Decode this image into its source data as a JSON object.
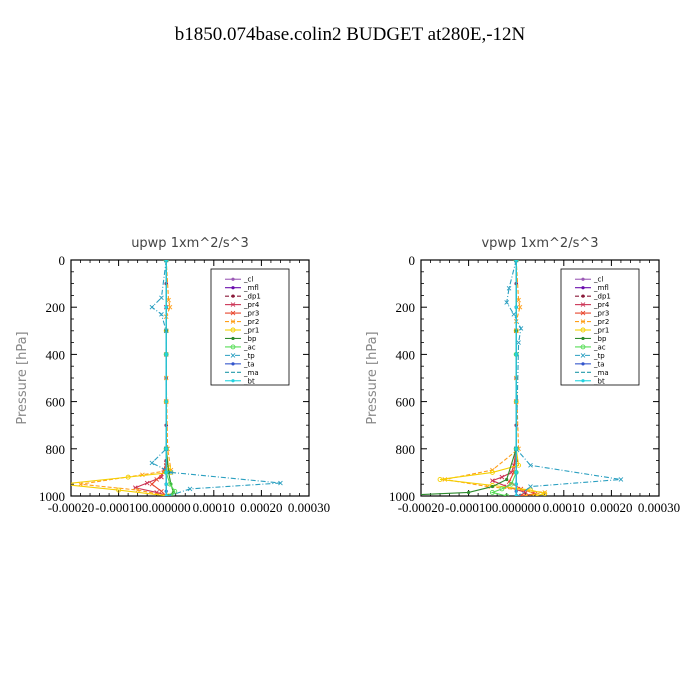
{
  "figure": {
    "title": "b1850.074base.colin2  BUDGET at280E,-12N"
  },
  "chart_data": [
    {
      "type": "line",
      "title": "upwp   1xm^2/s^3",
      "ylabel": "Pressure  [hPa]",
      "xlabel": "",
      "xlim": [
        -0.0002,
        0.0003
      ],
      "ylim": [
        0,
        1000
      ],
      "y_inverted": true,
      "xticks": [
        "-0.00020",
        "-0.00010",
        "0.000000",
        "0.00010",
        "0.00020",
        "0.00030"
      ],
      "yticks": [
        "0",
        "200",
        "400",
        "600",
        "800",
        "1000"
      ],
      "legend_position": "top-right",
      "series": [
        {
          "name": "_cl",
          "color": "#9b59b6",
          "style": "solid",
          "marker": "dot",
          "x": [
            0,
            0,
            0,
            0,
            0,
            0,
            0,
            0,
            0,
            0,
            0,
            0,
            0
          ],
          "y": [
            0,
            100,
            200,
            300,
            400,
            500,
            600,
            700,
            800,
            850,
            900,
            950,
            1000
          ]
        },
        {
          "name": "_mfl",
          "color": "#6a0dad",
          "style": "solid",
          "marker": "dot",
          "x": [
            0,
            0,
            0,
            0,
            0,
            0,
            0,
            0,
            0,
            0,
            0,
            0,
            0
          ],
          "y": [
            0,
            100,
            200,
            300,
            400,
            500,
            600,
            700,
            800,
            850,
            900,
            950,
            1000
          ]
        },
        {
          "name": "_dp1",
          "color": "#8b1a3a",
          "style": "dash",
          "marker": "dot",
          "x": [
            0,
            0,
            0,
            0,
            0,
            0,
            0,
            0,
            0,
            0,
            0,
            0,
            0
          ],
          "y": [
            0,
            100,
            200,
            300,
            400,
            500,
            600,
            700,
            800,
            850,
            900,
            950,
            1000
          ]
        },
        {
          "name": "_pr4",
          "color": "#cc3355",
          "style": "solid",
          "marker": "x",
          "x": [
            0,
            0,
            0,
            0,
            0,
            0,
            -5e-06,
            -1e-05,
            -4e-05,
            -6.5e-05,
            -2e-05,
            5e-06
          ],
          "y": [
            0,
            200,
            400,
            600,
            800,
            860,
            890,
            920,
            945,
            965,
            985,
            1000
          ]
        },
        {
          "name": "_pr3",
          "color": "#e8452c",
          "style": "solid",
          "marker": "x",
          "x": [
            0,
            0,
            0,
            0,
            0,
            -5e-06,
            -2e-05,
            -3e-05,
            -1e-05,
            0
          ],
          "y": [
            0,
            300,
            600,
            800,
            870,
            900,
            930,
            950,
            980,
            1000
          ]
        },
        {
          "name": "_pr2",
          "color": "#ff9f1a",
          "style": "dash",
          "marker": "x",
          "x": [
            0,
            5e-06,
            8e-06,
            0,
            0,
            3e-06,
            1e-05,
            -5e-05,
            -0.00018,
            -6e-05,
            5e-06
          ],
          "y": [
            0,
            170,
            200,
            240,
            500,
            800,
            890,
            910,
            950,
            975,
            1000
          ]
        },
        {
          "name": "_pr1",
          "color": "#f5d000",
          "style": "solid",
          "marker": "o",
          "x": [
            0,
            0,
            0,
            0,
            5e-06,
            1e-05,
            -8e-05,
            -0.00022,
            -0.0001,
            5e-06
          ],
          "y": [
            0,
            300,
            600,
            800,
            880,
            900,
            920,
            950,
            975,
            1000
          ]
        },
        {
          "name": "_bp",
          "color": "#2e8b2e",
          "style": "solid",
          "marker": "dot",
          "x": [
            0,
            0,
            0,
            0,
            5e-06,
            1e-05,
            1.5e-05,
            5e-06
          ],
          "y": [
            0,
            300,
            600,
            800,
            900,
            950,
            985,
            1000
          ]
        },
        {
          "name": "_ac",
          "color": "#55dd55",
          "style": "solid",
          "marker": "o",
          "x": [
            0,
            0,
            0,
            0,
            8e-06,
            1.8e-05,
            1e-05
          ],
          "y": [
            0,
            400,
            800,
            900,
            950,
            980,
            1000
          ]
        },
        {
          "name": "_tp",
          "color": "#2a9fc0",
          "style": "dashdot",
          "marker": "x",
          "x": [
            0,
            -1e-05,
            -3e-05,
            -1e-05,
            0,
            0,
            -3e-05,
            1e-05,
            0.00024,
            5e-05,
            5e-06
          ],
          "y": [
            0,
            160,
            200,
            230,
            300,
            800,
            860,
            900,
            945,
            970,
            1000
          ]
        },
        {
          "name": "_ta",
          "color": "#3355cc",
          "style": "solid",
          "marker": "dot",
          "x": [
            0,
            0,
            0,
            0,
            0,
            0,
            0,
            0,
            0
          ],
          "y": [
            0,
            200,
            400,
            600,
            800,
            900,
            950,
            980,
            1000
          ]
        },
        {
          "name": "_ma",
          "color": "#2299aa",
          "style": "dash",
          "marker": "none",
          "x": [
            0,
            0,
            0,
            0,
            0,
            0,
            0,
            0
          ],
          "y": [
            0,
            200,
            400,
            600,
            800,
            900,
            950,
            1000
          ]
        },
        {
          "name": "_bt",
          "color": "#22d4e0",
          "style": "solid",
          "marker": "dot",
          "x": [
            0,
            0,
            0,
            0,
            0,
            0,
            0,
            0
          ],
          "y": [
            0,
            200,
            400,
            600,
            800,
            900,
            950,
            1000
          ]
        }
      ]
    },
    {
      "type": "line",
      "title": "vpwp   1xm^2/s^3",
      "ylabel": "Pressure  [hPa]",
      "xlabel": "",
      "xlim": [
        -0.0002,
        0.0003
      ],
      "ylim": [
        0,
        1000
      ],
      "y_inverted": true,
      "xticks": [
        "-0.00020",
        "-0.00010",
        "0.000000",
        "0.00010",
        "0.00020",
        "0.00030"
      ],
      "yticks": [
        "0",
        "200",
        "400",
        "600",
        "800",
        "1000"
      ],
      "legend_position": "top-right",
      "series": [
        {
          "name": "_cl",
          "color": "#9b59b6",
          "style": "solid",
          "marker": "dot",
          "x": [
            0,
            0,
            0,
            0,
            0,
            0,
            0,
            0,
            0,
            0,
            0,
            0,
            0
          ],
          "y": [
            0,
            100,
            200,
            300,
            400,
            500,
            600,
            700,
            800,
            850,
            900,
            950,
            1000
          ]
        },
        {
          "name": "_mfl",
          "color": "#6a0dad",
          "style": "solid",
          "marker": "dot",
          "x": [
            0,
            0,
            0,
            0,
            0,
            0,
            0,
            0,
            0,
            0,
            0,
            0,
            0
          ],
          "y": [
            0,
            100,
            200,
            300,
            400,
            500,
            600,
            700,
            800,
            850,
            900,
            950,
            1000
          ]
        },
        {
          "name": "_dp1",
          "color": "#8b1a3a",
          "style": "dash",
          "marker": "dot",
          "x": [
            0,
            0,
            0,
            0,
            0,
            0,
            0,
            0,
            0,
            0,
            0,
            0,
            0
          ],
          "y": [
            0,
            100,
            200,
            300,
            400,
            500,
            600,
            700,
            800,
            850,
            900,
            950,
            1000
          ]
        },
        {
          "name": "_pr4",
          "color": "#cc3355",
          "style": "solid",
          "marker": "x",
          "x": [
            0,
            0,
            0,
            0,
            -5e-06,
            -1e-05,
            -3e-05,
            -5e-05,
            -2e-05,
            2e-05,
            5e-06
          ],
          "y": [
            0,
            300,
            600,
            800,
            870,
            900,
            920,
            935,
            960,
            985,
            1000
          ]
        },
        {
          "name": "_pr3",
          "color": "#e8452c",
          "style": "solid",
          "marker": "x",
          "x": [
            0,
            0,
            0,
            0,
            -5e-06,
            -1.5e-05,
            1e-05,
            4e-05,
            1e-05
          ],
          "y": [
            0,
            300,
            600,
            800,
            900,
            940,
            970,
            990,
            1000
          ]
        },
        {
          "name": "_pr2",
          "color": "#ff9f1a",
          "style": "dash",
          "marker": "x",
          "x": [
            0,
            5e-06,
            8e-06,
            0,
            0,
            5e-06,
            -5e-05,
            -0.00015,
            -6e-05,
            6e-05,
            2e-05
          ],
          "y": [
            0,
            170,
            200,
            260,
            500,
            800,
            890,
            930,
            960,
            985,
            1000
          ]
        },
        {
          "name": "_pr1",
          "color": "#f5d000",
          "style": "solid",
          "marker": "o",
          "x": [
            0,
            0,
            0,
            0,
            5e-06,
            -5e-05,
            -0.00016,
            -5e-05,
            3e-05,
            6e-05,
            4e-05
          ],
          "y": [
            0,
            300,
            600,
            800,
            870,
            900,
            930,
            955,
            975,
            990,
            1000
          ]
        },
        {
          "name": "_bp",
          "color": "#2e8b2e",
          "style": "solid",
          "marker": "dot",
          "x": [
            0,
            0,
            0,
            0,
            -2e-05,
            -5e-05,
            -0.0001,
            -0.00021
          ],
          "y": [
            0,
            300,
            600,
            800,
            930,
            960,
            985,
            995
          ]
        },
        {
          "name": "_ac",
          "color": "#55dd55",
          "style": "solid",
          "marker": "o",
          "x": [
            0,
            0,
            0,
            0,
            -1e-05,
            -3e-05,
            -5e-05,
            -2e-05
          ],
          "y": [
            0,
            400,
            800,
            900,
            950,
            970,
            985,
            1000
          ]
        },
        {
          "name": "_tp",
          "color": "#2a9fc0",
          "style": "dashdot",
          "marker": "x",
          "x": [
            0,
            -1.5e-05,
            -2e-05,
            -5e-06,
            1e-05,
            5e-06,
            0,
            3e-05,
            0.00022,
            3e-05,
            5e-06
          ],
          "y": [
            0,
            120,
            180,
            230,
            290,
            350,
            800,
            870,
            930,
            960,
            1000
          ]
        },
        {
          "name": "_ta",
          "color": "#3355cc",
          "style": "solid",
          "marker": "dot",
          "x": [
            0,
            0,
            0,
            0,
            0,
            0,
            0,
            0,
            0
          ],
          "y": [
            0,
            200,
            400,
            600,
            800,
            900,
            950,
            980,
            1000
          ]
        },
        {
          "name": "_ma",
          "color": "#2299aa",
          "style": "dash",
          "marker": "none",
          "x": [
            0,
            0,
            0,
            0,
            0,
            0,
            0,
            0
          ],
          "y": [
            0,
            200,
            400,
            600,
            800,
            900,
            950,
            1000
          ]
        },
        {
          "name": "_bt",
          "color": "#22d4e0",
          "style": "solid",
          "marker": "dot",
          "x": [
            0,
            0,
            0,
            0,
            0,
            0,
            0,
            0
          ],
          "y": [
            0,
            200,
            400,
            600,
            800,
            900,
            950,
            1000
          ]
        }
      ]
    }
  ]
}
